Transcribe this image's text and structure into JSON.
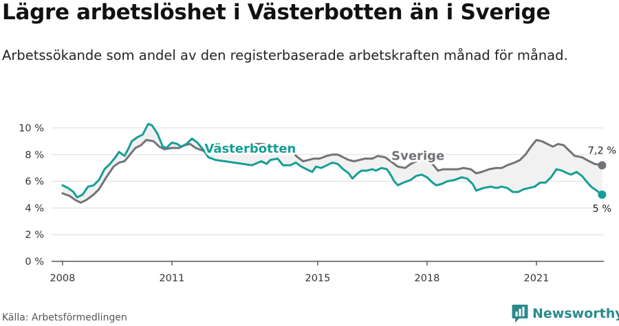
{
  "title": "Lägre arbetslöshet i Västerbotten än i Sverige",
  "subtitle": "Arbetssökande som andel av den registerbaserade arbetskraften månad för månad.",
  "source": "Källa: Arbetsförmedlingen",
  "brand": {
    "name": "Newsworthy",
    "icon": "newsworthy-logo-icon",
    "color": "#2a8a8a"
  },
  "chart_data": {
    "type": "line",
    "x_unit": "year",
    "xlim": [
      2007.7,
      2022.85
    ],
    "ylim": [
      0,
      10
    ],
    "x_ticks": [
      2008,
      2011,
      2015,
      2018,
      2021
    ],
    "x_tick_labels": [
      "2008",
      "2011",
      "2015",
      "2018",
      "2021"
    ],
    "y_ticks": [
      0,
      2,
      4,
      6,
      8,
      10
    ],
    "y_tick_labels": [
      "0 %",
      "2 %",
      "4 %",
      "6 %",
      "8 %",
      "10 %"
    ],
    "grid": true,
    "legend": "none (series labelled directly on lines)",
    "series": [
      {
        "name": "Västerbotten",
        "color": "#159e96",
        "end_label": "5 %",
        "points": [
          [
            2008.0,
            5.7
          ],
          [
            2008.15,
            5.5
          ],
          [
            2008.3,
            5.2
          ],
          [
            2008.4,
            4.8
          ],
          [
            2008.55,
            5.0
          ],
          [
            2008.7,
            5.6
          ],
          [
            2008.85,
            5.7
          ],
          [
            2009.0,
            6.1
          ],
          [
            2009.15,
            6.9
          ],
          [
            2009.3,
            7.3
          ],
          [
            2009.45,
            7.8
          ],
          [
            2009.55,
            8.2
          ],
          [
            2009.7,
            7.9
          ],
          [
            2009.8,
            8.4
          ],
          [
            2009.9,
            9.0
          ],
          [
            2010.05,
            9.3
          ],
          [
            2010.2,
            9.5
          ],
          [
            2010.35,
            10.3
          ],
          [
            2010.45,
            10.2
          ],
          [
            2010.6,
            9.6
          ],
          [
            2010.75,
            8.6
          ],
          [
            2010.85,
            8.5
          ],
          [
            2011.0,
            8.9
          ],
          [
            2011.15,
            8.8
          ],
          [
            2011.25,
            8.6
          ],
          [
            2011.4,
            8.8
          ],
          [
            2011.55,
            9.2
          ],
          [
            2011.7,
            8.9
          ],
          [
            2011.85,
            8.4
          ],
          [
            2012.0,
            7.8
          ],
          [
            2012.2,
            7.6
          ],
          [
            2012.45,
            7.5
          ],
          [
            2012.7,
            7.4
          ],
          [
            2012.95,
            7.3
          ],
          [
            2013.2,
            7.2
          ],
          [
            2013.45,
            7.5
          ],
          [
            2013.6,
            7.3
          ],
          [
            2013.7,
            7.6
          ],
          [
            2013.9,
            7.7
          ],
          [
            2014.05,
            7.2
          ],
          [
            2014.25,
            7.2
          ],
          [
            2014.4,
            7.4
          ],
          [
            2014.55,
            7.1
          ],
          [
            2014.7,
            6.9
          ],
          [
            2014.85,
            6.7
          ],
          [
            2014.95,
            7.1
          ],
          [
            2015.1,
            7.0
          ],
          [
            2015.25,
            7.2
          ],
          [
            2015.4,
            7.4
          ],
          [
            2015.55,
            7.3
          ],
          [
            2015.7,
            6.9
          ],
          [
            2015.85,
            6.6
          ],
          [
            2015.95,
            6.2
          ],
          [
            2016.1,
            6.6
          ],
          [
            2016.2,
            6.8
          ],
          [
            2016.35,
            6.8
          ],
          [
            2016.5,
            6.9
          ],
          [
            2016.6,
            6.8
          ],
          [
            2016.75,
            7.0
          ],
          [
            2016.9,
            6.9
          ],
          [
            2017.0,
            6.5
          ],
          [
            2017.1,
            6.0
          ],
          [
            2017.2,
            5.7
          ],
          [
            2017.35,
            5.9
          ],
          [
            2017.55,
            6.1
          ],
          [
            2017.7,
            6.4
          ],
          [
            2017.85,
            6.5
          ],
          [
            2018.0,
            6.3
          ],
          [
            2018.15,
            5.9
          ],
          [
            2018.25,
            5.7
          ],
          [
            2018.4,
            5.8
          ],
          [
            2018.55,
            6.0
          ],
          [
            2018.75,
            6.1
          ],
          [
            2018.95,
            6.3
          ],
          [
            2019.1,
            6.2
          ],
          [
            2019.25,
            5.8
          ],
          [
            2019.35,
            5.3
          ],
          [
            2019.55,
            5.5
          ],
          [
            2019.75,
            5.6
          ],
          [
            2019.9,
            5.5
          ],
          [
            2020.05,
            5.6
          ],
          [
            2020.2,
            5.5
          ],
          [
            2020.35,
            5.2
          ],
          [
            2020.5,
            5.2
          ],
          [
            2020.65,
            5.4
          ],
          [
            2020.8,
            5.5
          ],
          [
            2020.95,
            5.6
          ],
          [
            2021.1,
            5.9
          ],
          [
            2021.25,
            5.9
          ],
          [
            2021.4,
            6.3
          ],
          [
            2021.55,
            6.9
          ],
          [
            2021.7,
            6.8
          ],
          [
            2021.85,
            6.6
          ],
          [
            2021.95,
            6.5
          ],
          [
            2022.1,
            6.7
          ],
          [
            2022.25,
            6.4
          ],
          [
            2022.4,
            5.9
          ],
          [
            2022.5,
            5.6
          ],
          [
            2022.65,
            5.3
          ],
          [
            2022.8,
            5.0
          ]
        ]
      },
      {
        "name": "Sverige",
        "color": "#727277",
        "end_label": "7,2 %",
        "points": [
          [
            2008.0,
            5.1
          ],
          [
            2008.2,
            4.9
          ],
          [
            2008.35,
            4.6
          ],
          [
            2008.5,
            4.4
          ],
          [
            2008.65,
            4.6
          ],
          [
            2008.85,
            5.0
          ],
          [
            2009.0,
            5.4
          ],
          [
            2009.2,
            6.3
          ],
          [
            2009.4,
            7.1
          ],
          [
            2009.55,
            7.4
          ],
          [
            2009.7,
            7.5
          ],
          [
            2009.85,
            8.0
          ],
          [
            2010.0,
            8.5
          ],
          [
            2010.15,
            8.7
          ],
          [
            2010.3,
            9.1
          ],
          [
            2010.5,
            9.0
          ],
          [
            2010.65,
            8.6
          ],
          [
            2010.8,
            8.4
          ],
          [
            2011.0,
            8.5
          ],
          [
            2011.2,
            8.5
          ],
          [
            2011.35,
            8.7
          ],
          [
            2011.5,
            8.8
          ],
          [
            2011.65,
            8.5
          ],
          [
            2011.85,
            8.3
          ],
          [
            2012.0,
            8.2
          ],
          [
            2012.2,
            8.1
          ],
          [
            2012.4,
            8.1
          ],
          [
            2012.6,
            8.2
          ],
          [
            2012.85,
            8.4
          ],
          [
            2013.1,
            8.6
          ],
          [
            2013.3,
            8.8
          ],
          [
            2013.5,
            8.8
          ],
          [
            2013.7,
            8.6
          ],
          [
            2013.9,
            8.4
          ],
          [
            2014.1,
            8.4
          ],
          [
            2014.3,
            8.2
          ],
          [
            2014.45,
            7.8
          ],
          [
            2014.6,
            7.5
          ],
          [
            2014.75,
            7.6
          ],
          [
            2014.9,
            7.7
          ],
          [
            2015.05,
            7.7
          ],
          [
            2015.25,
            7.9
          ],
          [
            2015.4,
            8.0
          ],
          [
            2015.55,
            8.0
          ],
          [
            2015.7,
            7.8
          ],
          [
            2015.85,
            7.6
          ],
          [
            2016.0,
            7.5
          ],
          [
            2016.15,
            7.6
          ],
          [
            2016.3,
            7.7
          ],
          [
            2016.5,
            7.7
          ],
          [
            2016.65,
            7.9
          ],
          [
            2016.85,
            7.8
          ],
          [
            2017.05,
            7.4
          ],
          [
            2017.2,
            7.1
          ],
          [
            2017.4,
            7.0
          ],
          [
            2017.55,
            7.3
          ],
          [
            2017.7,
            7.5
          ],
          [
            2017.85,
            7.6
          ],
          [
            2018.0,
            7.5
          ],
          [
            2018.15,
            7.3
          ],
          [
            2018.3,
            6.8
          ],
          [
            2018.45,
            6.9
          ],
          [
            2018.65,
            6.9
          ],
          [
            2018.85,
            6.9
          ],
          [
            2019.0,
            7.0
          ],
          [
            2019.2,
            6.9
          ],
          [
            2019.35,
            6.6
          ],
          [
            2019.5,
            6.7
          ],
          [
            2019.7,
            6.9
          ],
          [
            2019.9,
            7.0
          ],
          [
            2020.05,
            7.0
          ],
          [
            2020.2,
            7.2
          ],
          [
            2020.4,
            7.4
          ],
          [
            2020.55,
            7.6
          ],
          [
            2020.7,
            8.0
          ],
          [
            2020.85,
            8.6
          ],
          [
            2021.0,
            9.1
          ],
          [
            2021.15,
            9.0
          ],
          [
            2021.3,
            8.8
          ],
          [
            2021.45,
            8.6
          ],
          [
            2021.6,
            8.8
          ],
          [
            2021.75,
            8.7
          ],
          [
            2021.9,
            8.3
          ],
          [
            2022.05,
            7.9
          ],
          [
            2022.25,
            7.8
          ],
          [
            2022.45,
            7.5
          ],
          [
            2022.6,
            7.3
          ],
          [
            2022.8,
            7.2
          ]
        ]
      }
    ],
    "labels": [
      {
        "text": "Västerbotten",
        "series": 0,
        "x": 2013.15,
        "y": 8.15
      },
      {
        "text": "Sverige",
        "series": 1,
        "x": 2017.75,
        "y": 7.6
      }
    ]
  }
}
